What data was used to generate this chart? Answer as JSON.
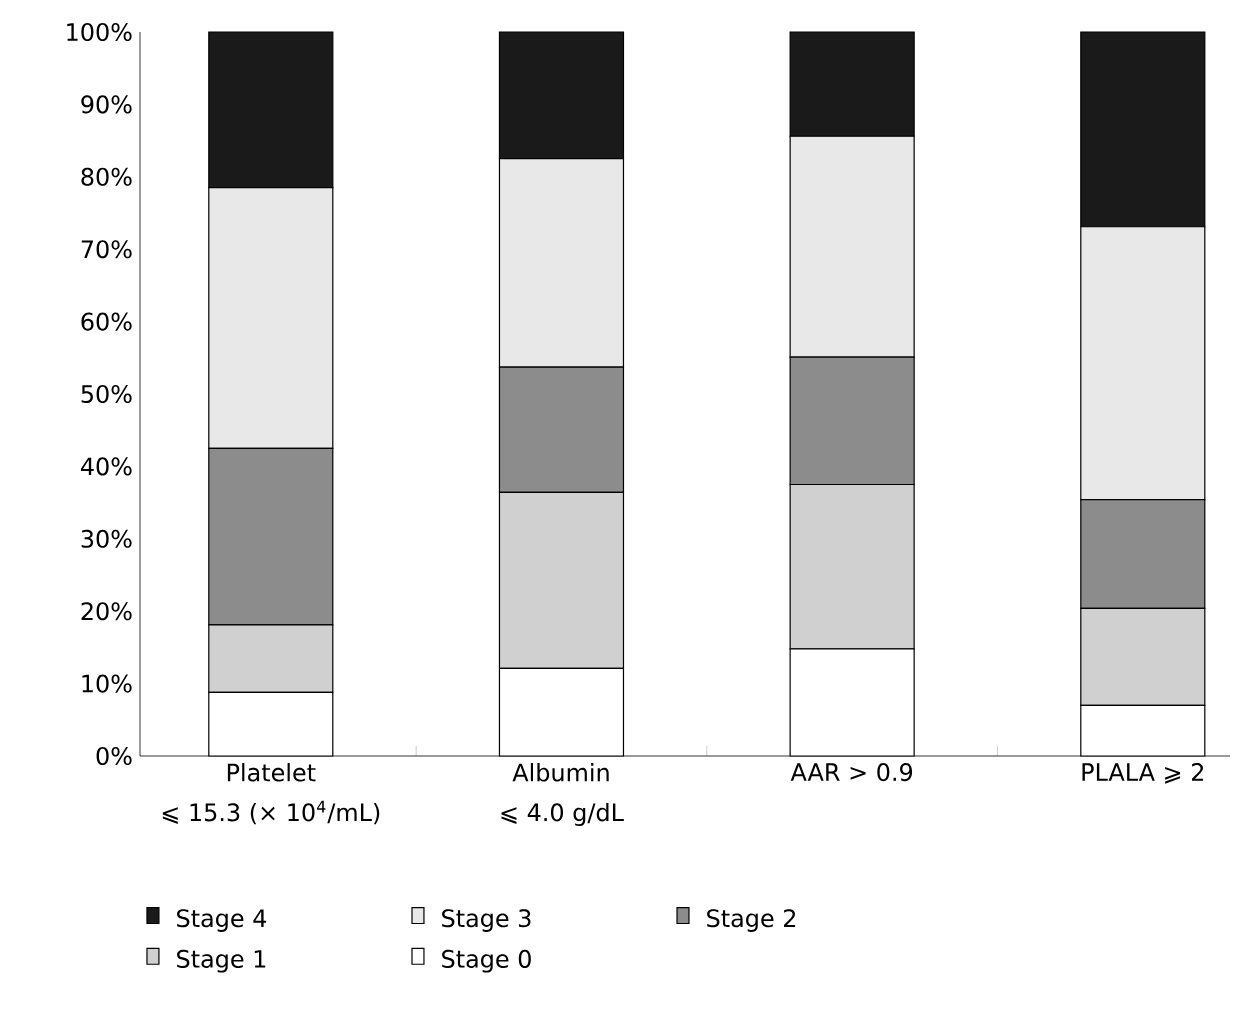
{
  "chart_data": {
    "type": "bar",
    "stacked": true,
    "categories": [
      "Platelet\n⩽ 15.3 (× 10$^{4}$/mL)",
      "Albumin\n⩽ 4.0 g/dL",
      "AAR > 0.9",
      "PLALA ⩾ 2"
    ],
    "series": [
      {
        "name": "Stage 0",
        "color": "#ffffff",
        "values": [
          8.8,
          12.1,
          14.8,
          7.0
        ]
      },
      {
        "name": "Stage 1",
        "color": "#d0d0d0",
        "values": [
          9.3,
          24.3,
          22.7,
          13.4
        ]
      },
      {
        "name": "Stage 2",
        "color": "#8c8c8c",
        "values": [
          24.4,
          17.3,
          17.6,
          15.0
        ]
      },
      {
        "name": "Stage 3",
        "color": "#e8e8e8",
        "values": [
          36.0,
          28.8,
          30.5,
          37.7
        ]
      },
      {
        "name": "Stage 4",
        "color": "#1a1a1a",
        "values": [
          21.5,
          17.5,
          14.4,
          26.9
        ]
      }
    ],
    "ylim": [
      0,
      100
    ],
    "yticks": [
      {
        "value": 0,
        "label": "0%"
      },
      {
        "value": 10,
        "label": "10%"
      },
      {
        "value": 20,
        "label": "20%"
      },
      {
        "value": 30,
        "label": "30%"
      },
      {
        "value": 40,
        "label": "40%"
      },
      {
        "value": 50,
        "label": "50%"
      },
      {
        "value": 60,
        "label": "60%"
      },
      {
        "value": 70,
        "label": "70%"
      },
      {
        "value": 80,
        "label": "80%"
      },
      {
        "value": 90,
        "label": "90%"
      },
      {
        "value": 100,
        "label": "100%"
      }
    ],
    "legend": "bottom",
    "grid": false
  }
}
